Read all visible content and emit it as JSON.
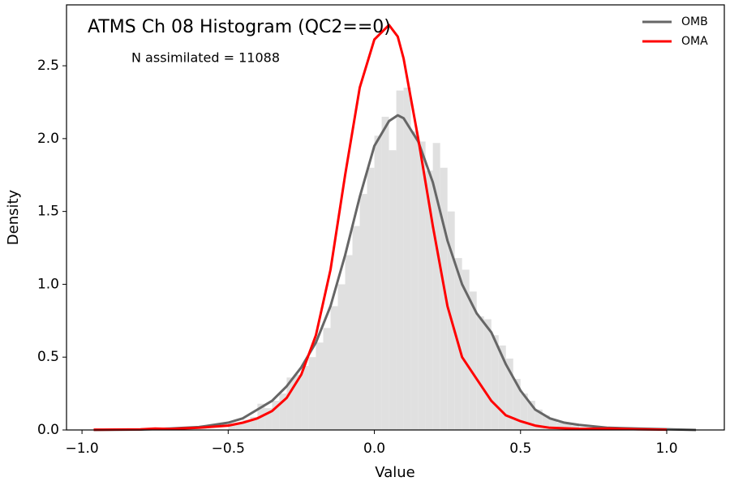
{
  "chart_data": {
    "type": "histogram",
    "title": "ATMS Ch 08 Histogram (QC2==0)",
    "annotation": "N assimilated = 11088",
    "x_label": "Value",
    "y_label": "Density",
    "color": "#e0e0e0",
    "bins": [
      -0.5,
      -0.475,
      -0.45,
      -0.425,
      -0.4,
      -0.375,
      -0.35,
      -0.325,
      -0.3,
      -0.275,
      -0.25,
      -0.225,
      -0.2,
      -0.175,
      -0.15,
      -0.125,
      -0.1,
      -0.075,
      -0.05,
      -0.025,
      0,
      0.025,
      0.05,
      0.075,
      0.1,
      0.125,
      0.15,
      0.175,
      0.2,
      0.225,
      0.25,
      0.275,
      0.3,
      0.325,
      0.35,
      0.375,
      0.4,
      0.425,
      0.45,
      0.475,
      0.5,
      0.525,
      0.55,
      0.575,
      0.6,
      0.625,
      0.65,
      0.675,
      0.7
    ],
    "values": [
      0.04,
      0.05,
      0.07,
      0.09,
      0.18,
      0.15,
      0.2,
      0.25,
      0.36,
      0.38,
      0.44,
      0.5,
      0.6,
      0.7,
      0.85,
      1.0,
      1.2,
      1.4,
      1.62,
      1.8,
      2.02,
      2.15,
      1.92,
      2.33,
      2.35,
      2.05,
      1.98,
      1.78,
      1.97,
      1.8,
      1.5,
      1.18,
      1.1,
      0.95,
      0.78,
      0.76,
      0.65,
      0.58,
      0.49,
      0.35,
      0.25,
      0.2,
      0.14,
      0.1,
      0.07,
      0.05,
      0.04,
      0.03
    ],
    "series": [
      {
        "name": "OMB",
        "color": "#666666",
        "x": [
          -0.96,
          -0.8,
          -0.7,
          -0.6,
          -0.5,
          -0.45,
          -0.4,
          -0.35,
          -0.3,
          -0.25,
          -0.2,
          -0.15,
          -0.1,
          -0.05,
          0,
          0.05,
          0.08,
          0.1,
          0.15,
          0.2,
          0.25,
          0.3,
          0.35,
          0.4,
          0.45,
          0.5,
          0.55,
          0.6,
          0.65,
          0.7,
          0.8,
          0.9,
          1.0,
          1.1
        ],
        "values": [
          0,
          0.003,
          0.01,
          0.02,
          0.05,
          0.08,
          0.14,
          0.2,
          0.3,
          0.43,
          0.6,
          0.85,
          1.2,
          1.6,
          1.95,
          2.12,
          2.16,
          2.14,
          1.98,
          1.7,
          1.3,
          1.0,
          0.8,
          0.67,
          0.45,
          0.27,
          0.14,
          0.08,
          0.05,
          0.035,
          0.015,
          0.01,
          0.005,
          0
        ]
      },
      {
        "name": "OMA",
        "color": "#ff0000",
        "x": [
          -0.96,
          -0.8,
          -0.75,
          -0.7,
          -0.6,
          -0.5,
          -0.45,
          -0.4,
          -0.35,
          -0.3,
          -0.25,
          -0.2,
          -0.15,
          -0.1,
          -0.05,
          0,
          0.05,
          0.08,
          0.1,
          0.15,
          0.2,
          0.25,
          0.3,
          0.35,
          0.4,
          0.45,
          0.5,
          0.55,
          0.6,
          0.7,
          0.8,
          0.9,
          1.0
        ],
        "values": [
          0.002,
          0.004,
          0.01,
          0.007,
          0.015,
          0.03,
          0.05,
          0.08,
          0.13,
          0.22,
          0.38,
          0.65,
          1.1,
          1.75,
          2.35,
          2.68,
          2.78,
          2.7,
          2.55,
          2.0,
          1.4,
          0.85,
          0.5,
          0.35,
          0.2,
          0.1,
          0.06,
          0.03,
          0.015,
          0.008,
          0.01,
          0.005,
          0.002
        ]
      }
    ],
    "xlim": [
      -1.053,
      1.197
    ],
    "ylim": [
      0,
      2.918
    ],
    "xticks": [
      {
        "value": -1,
        "label": "−1.0"
      },
      {
        "value": -0.5,
        "label": "−0.5"
      },
      {
        "value": 0,
        "label": "0.0"
      },
      {
        "value": 0.5,
        "label": "0.5"
      },
      {
        "value": 1,
        "label": "1.0"
      }
    ],
    "yticks": [
      {
        "value": 0,
        "label": "0.0"
      },
      {
        "value": 0.5,
        "label": "0.5"
      },
      {
        "value": 1,
        "label": "1.0"
      },
      {
        "value": 1.5,
        "label": "1.5"
      },
      {
        "value": 2,
        "label": "2.0"
      },
      {
        "value": 2.5,
        "label": "2.5"
      }
    ],
    "legend": "upper right"
  }
}
